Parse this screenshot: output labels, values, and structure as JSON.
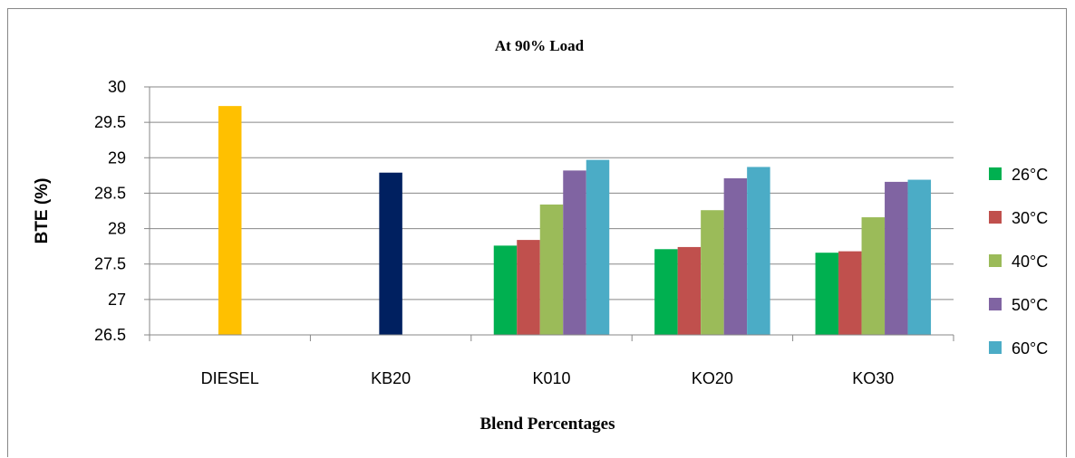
{
  "chart_data": {
    "type": "bar",
    "title": "At 90% Load",
    "xlabel": "Blend Percentages",
    "ylabel": "BTE (%)",
    "ylim": [
      26.5,
      30
    ],
    "yticks": [
      "26.5",
      "27",
      "27.5",
      "28",
      "28.5",
      "29",
      "29.5",
      "30"
    ],
    "ytick_values": [
      26.5,
      27,
      27.5,
      28,
      28.5,
      29,
      29.5,
      30
    ],
    "grid": true,
    "legend_position": "right",
    "categories": [
      "DIESEL",
      "KB20",
      "K010",
      "KO20",
      "KO30"
    ],
    "single_bars": [
      {
        "category": "DIESEL",
        "value": 29.73,
        "color": "#FFC000"
      },
      {
        "category": "KB20",
        "value": 28.79,
        "color": "#002060"
      }
    ],
    "series": [
      {
        "name": "26°C",
        "color": "#00B050",
        "values": [
          null,
          null,
          27.76,
          27.71,
          27.66
        ]
      },
      {
        "name": "30°C",
        "color": "#C0504D",
        "values": [
          null,
          null,
          27.84,
          27.74,
          27.68
        ]
      },
      {
        "name": "40°C",
        "color": "#9BBB59",
        "values": [
          null,
          null,
          28.34,
          28.26,
          28.16
        ]
      },
      {
        "name": "50°C",
        "color": "#8064A2",
        "values": [
          null,
          null,
          28.82,
          28.71,
          28.66
        ]
      },
      {
        "name": "60°C",
        "color": "#4BACC6",
        "values": [
          null,
          null,
          28.97,
          28.87,
          28.69
        ]
      }
    ]
  }
}
